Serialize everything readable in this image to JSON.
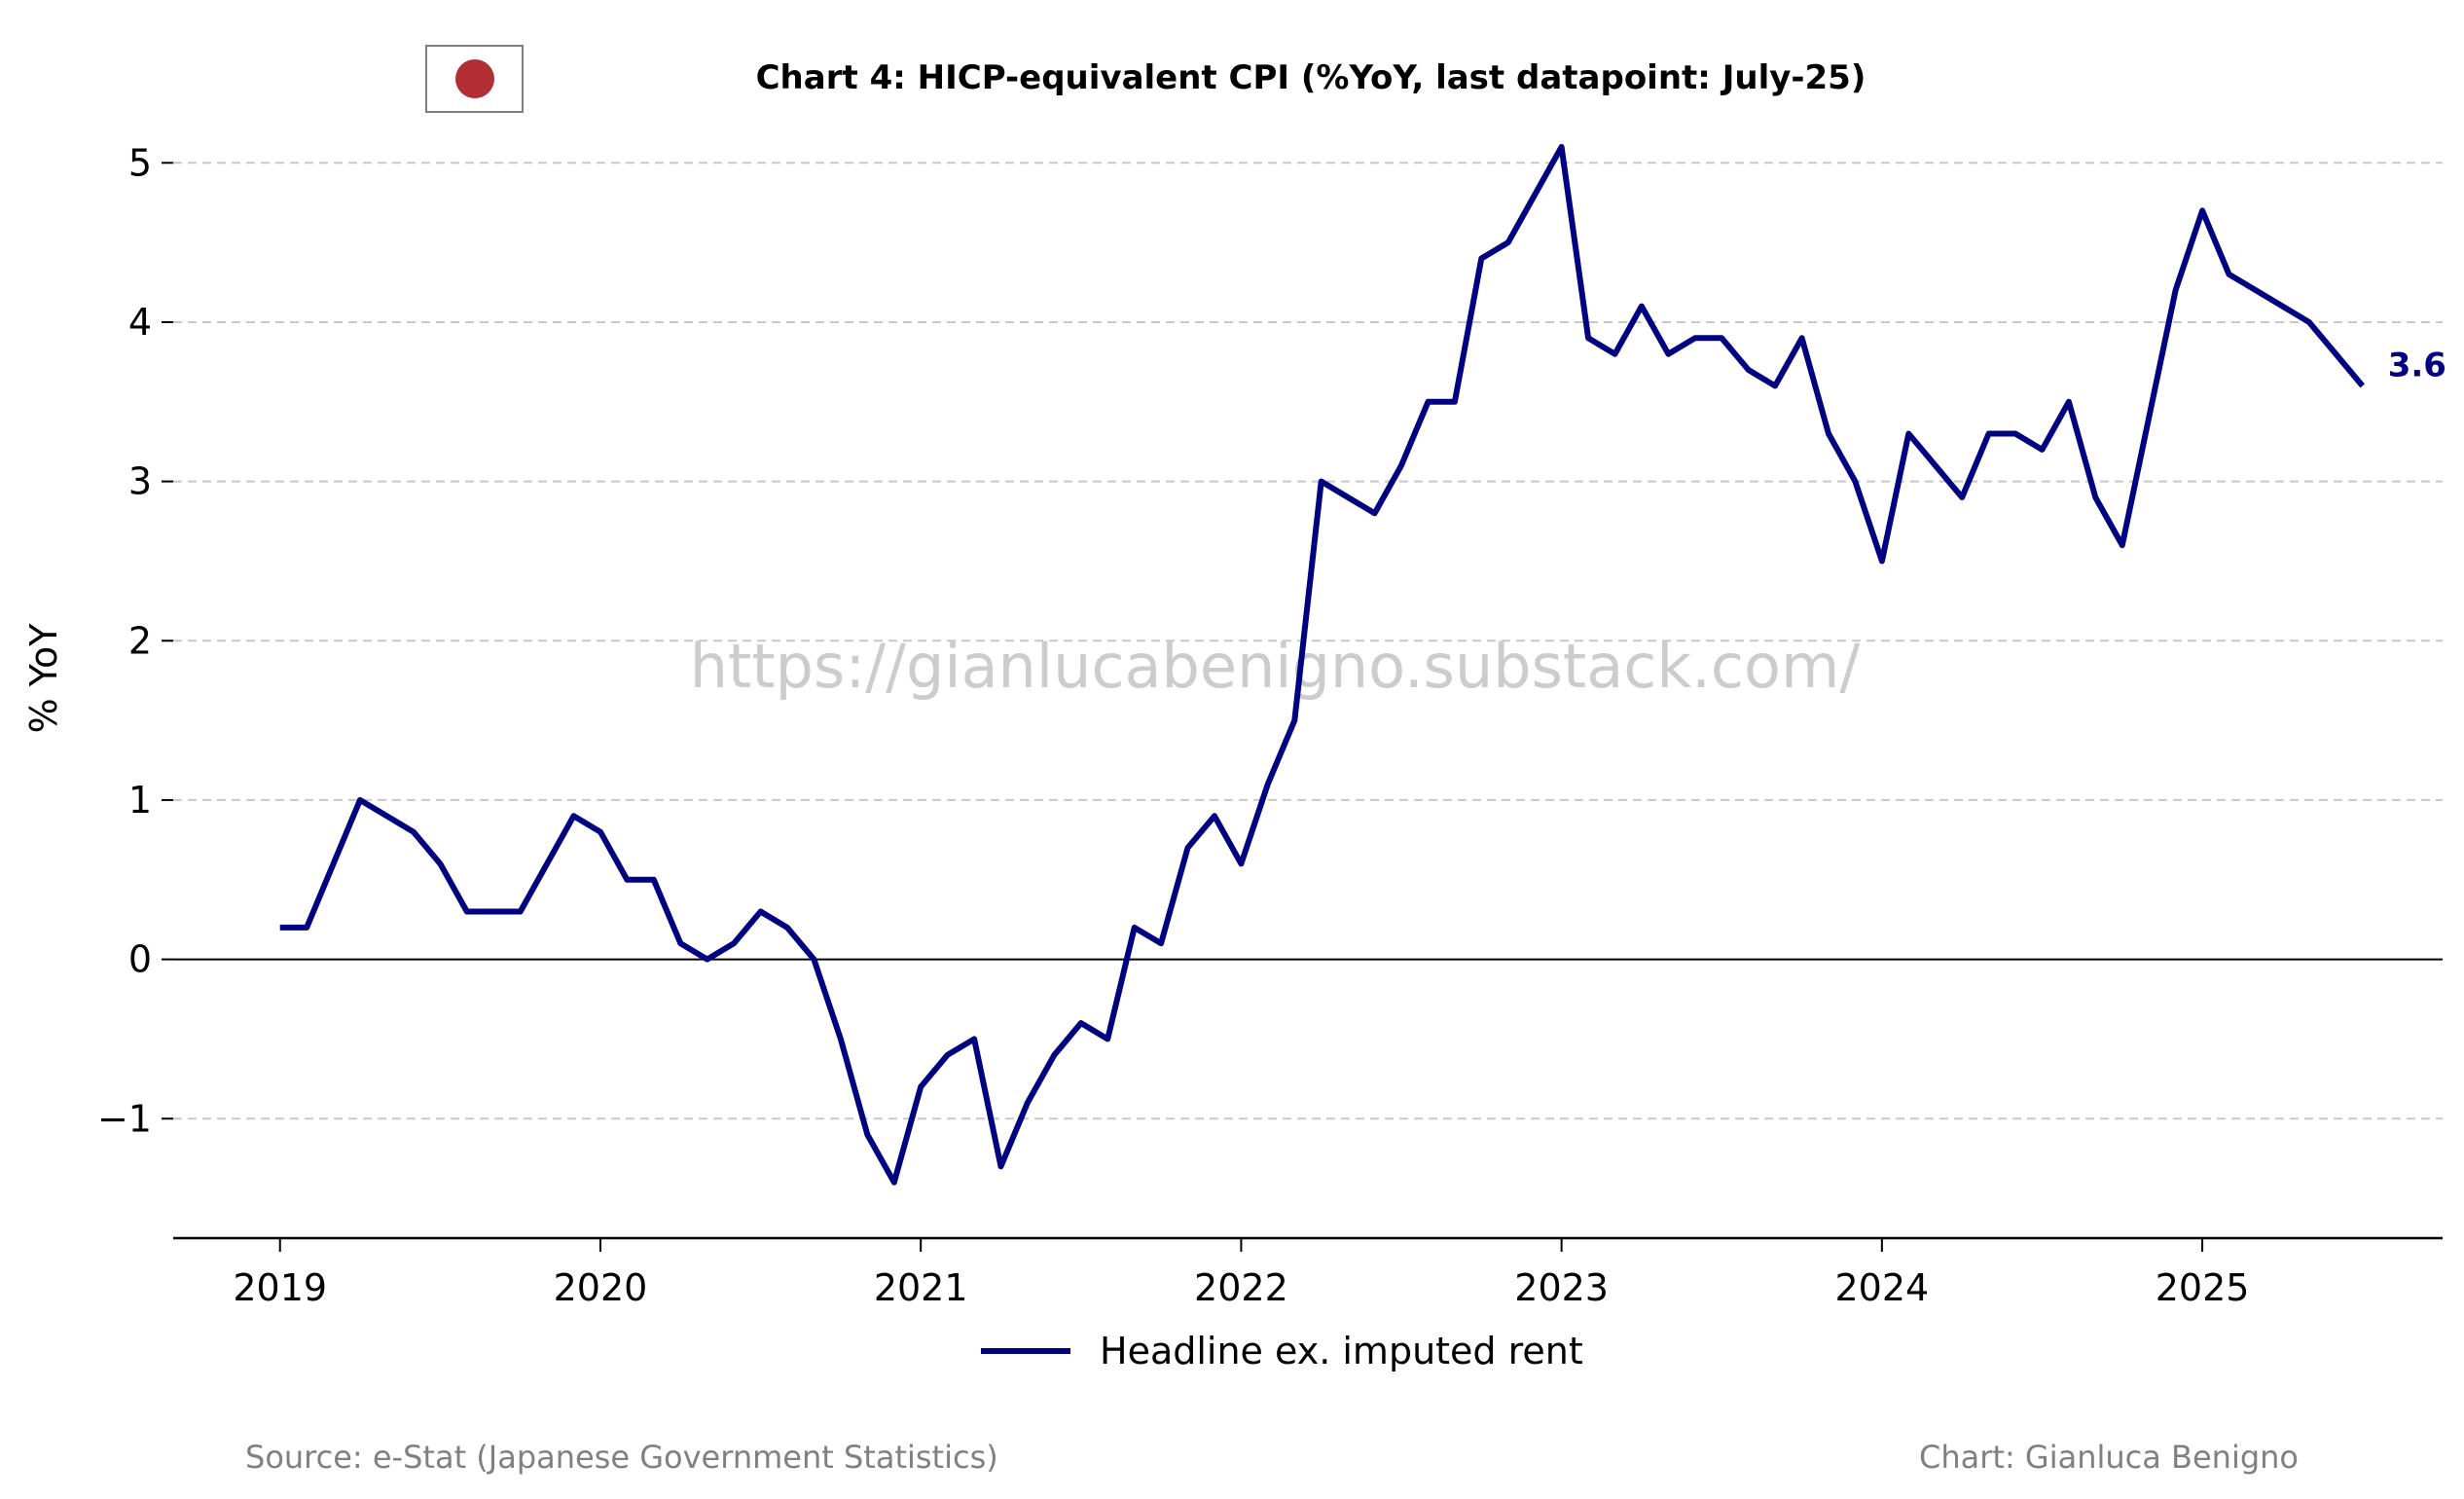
{
  "chart_data": {
    "type": "line",
    "title": "Chart 4: HICP-equivalent CPI (%YoY, last datapoint: July-25)",
    "ylabel": "% YoY",
    "xlabel": "",
    "ylim": [
      -1.75,
      5.35
    ],
    "xlim": [
      "2018-09",
      "2025-10"
    ],
    "y_ticks": [
      -1,
      0,
      1,
      2,
      3,
      4,
      5
    ],
    "y_tick_labels": [
      "−1",
      "0",
      "1",
      "2",
      "3",
      "4",
      "5"
    ],
    "x_tick_labels": [
      "2019",
      "2020",
      "2021",
      "2022",
      "2023",
      "2024",
      "2025"
    ],
    "grid": "horizontal dashed",
    "zero_line": true,
    "legend_position": "bottom-center",
    "series": [
      {
        "name": "Headline ex. imputed rent",
        "color": "#000080",
        "x": [
          "2019-01",
          "2019-02",
          "2019-03",
          "2019-04",
          "2019-05",
          "2019-06",
          "2019-07",
          "2019-08",
          "2019-09",
          "2019-10",
          "2019-11",
          "2019-12",
          "2020-01",
          "2020-02",
          "2020-03",
          "2020-04",
          "2020-05",
          "2020-06",
          "2020-07",
          "2020-08",
          "2020-09",
          "2020-10",
          "2020-11",
          "2020-12",
          "2021-01",
          "2021-02",
          "2021-03",
          "2021-04",
          "2021-05",
          "2021-06",
          "2021-07",
          "2021-08",
          "2021-09",
          "2021-10",
          "2021-11",
          "2021-12",
          "2022-01",
          "2022-02",
          "2022-03",
          "2022-04",
          "2022-05",
          "2022-06",
          "2022-07",
          "2022-08",
          "2022-09",
          "2022-10",
          "2022-11",
          "2022-12",
          "2023-01",
          "2023-02",
          "2023-03",
          "2023-04",
          "2023-05",
          "2023-06",
          "2023-07",
          "2023-08",
          "2023-09",
          "2023-10",
          "2023-11",
          "2023-12",
          "2024-01",
          "2024-02",
          "2024-03",
          "2024-04",
          "2024-05",
          "2024-06",
          "2024-07",
          "2024-08",
          "2024-09",
          "2024-10",
          "2024-11",
          "2024-12",
          "2025-01",
          "2025-02",
          "2025-03",
          "2025-04",
          "2025-05",
          "2025-06",
          "2025-07"
        ],
        "values": [
          0.2,
          0.2,
          0.6,
          1.0,
          0.9,
          0.8,
          0.6,
          0.3,
          0.3,
          0.3,
          0.6,
          0.9,
          0.8,
          0.5,
          0.5,
          0.1,
          0.0,
          0.1,
          0.3,
          0.2,
          0.0,
          -0.5,
          -1.1,
          -1.4,
          -0.8,
          -0.6,
          -0.5,
          -1.3,
          -0.9,
          -0.6,
          -0.4,
          -0.5,
          0.2,
          0.1,
          0.7,
          0.9,
          0.6,
          1.1,
          1.5,
          3.0,
          2.9,
          2.8,
          3.1,
          3.5,
          3.5,
          4.4,
          4.5,
          4.8,
          5.1,
          3.9,
          3.8,
          4.1,
          3.8,
          3.9,
          3.9,
          3.7,
          3.6,
          3.9,
          3.3,
          3.0,
          2.5,
          3.3,
          3.1,
          2.9,
          3.3,
          3.3,
          3.2,
          3.5,
          2.9,
          2.6,
          3.4,
          4.2,
          4.7,
          4.3,
          4.2,
          4.1,
          4.0,
          3.8,
          3.6
        ]
      }
    ],
    "annotations": [
      {
        "text": "3.6",
        "color": "#000080"
      }
    ]
  },
  "flag": {
    "icon": "japan-flag-icon",
    "disc_color": "#b22e35"
  },
  "watermark": "https://gianlucabenigno.substack.com/",
  "footer": {
    "source": "Source: e-Stat (Japanese Government Statistics)",
    "credit": "Chart: Gianluca Benigno"
  }
}
